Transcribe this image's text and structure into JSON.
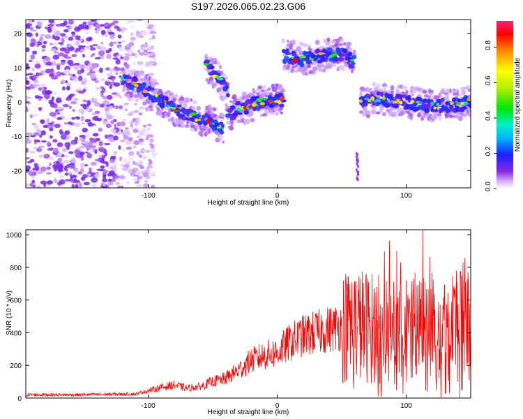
{
  "title": "S197.2026.065.02.23.G06",
  "chart_data": [
    {
      "type": "heatmap",
      "title": "S197.2026.065.02.23.G06",
      "xlabel": "Height of straight line (km)",
      "ylabel": "Frequency (Hz)",
      "xlim": [
        -195,
        150
      ],
      "ylim": [
        -25,
        24
      ],
      "xticks": [
        -100,
        0,
        100
      ],
      "yticks": [
        -20,
        -10,
        0,
        10,
        20
      ],
      "colorbar": {
        "label": "Normalized spectral amplitude",
        "range": [
          0.0,
          0.95
        ],
        "ticks": [
          0.0,
          0.2,
          0.4,
          0.6,
          0.8
        ]
      },
      "ridge_segments": [
        {
          "x": [
            -120,
            -100,
            -80,
            -60,
            -50,
            -42
          ],
          "freq": [
            7,
            3,
            -2,
            -5,
            -6,
            -8
          ]
        },
        {
          "x": [
            -55,
            -48,
            -42,
            -38
          ],
          "freq": [
            11,
            8,
            5,
            2
          ]
        },
        {
          "x": [
            -38,
            -30,
            -20,
            -10,
            0,
            5
          ],
          "freq": [
            -4,
            -2,
            -1,
            0.5,
            0.5,
            0.5
          ]
        },
        {
          "x": [
            5,
            20,
            35,
            50,
            60
          ],
          "freq": [
            13.5,
            12.5,
            13.5,
            14,
            11.5
          ]
        },
        {
          "x": [
            65,
            80,
            100,
            120,
            140,
            150
          ],
          "freq": [
            0,
            1,
            0,
            -1,
            -1,
            0.5
          ]
        }
      ],
      "noise_region_x": [
        -195,
        -105
      ]
    },
    {
      "type": "line",
      "xlabel": "Height of straight line (km)",
      "ylabel": "SNR (10 * v/v)",
      "xlim": [
        -195,
        150
      ],
      "ylim": [
        0,
        1030
      ],
      "xticks": [
        -100,
        0,
        100
      ],
      "yticks": [
        0,
        200,
        400,
        600,
        800,
        1000
      ],
      "series": [
        {
          "name": "SNR",
          "color": "#ff0000",
          "x": [
            -195,
            -150,
            -110,
            -100,
            -90,
            -80,
            -70,
            -60,
            -50,
            -40,
            -30,
            -20,
            -10,
            0,
            10,
            20,
            30,
            40,
            50,
            60,
            70,
            80,
            90,
            100,
            110,
            120,
            130,
            140,
            150
          ],
          "y": [
            20,
            20,
            25,
            45,
            65,
            80,
            60,
            70,
            100,
            120,
            170,
            230,
            260,
            280,
            340,
            380,
            400,
            420,
            440,
            450,
            440,
            420,
            380,
            400,
            420,
            430,
            440,
            450,
            480
          ]
        }
      ]
    }
  ]
}
